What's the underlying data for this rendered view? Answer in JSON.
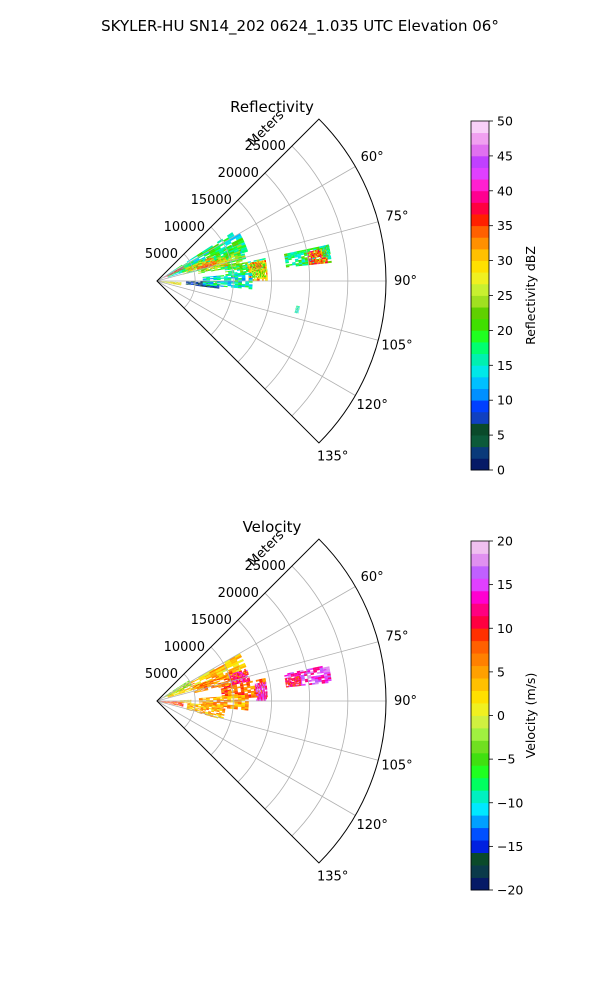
{
  "figure": {
    "title": "SKYLER-HU  SN14_202  0624_1.035 UTC Elevation 06°"
  },
  "chart_data": [
    {
      "type": "heatmap",
      "projection": "polar-sector",
      "title": "Reflectivity",
      "radial_axis_label": "Meters",
      "radial_range": [
        0,
        30000
      ],
      "radial_ticks": [
        5000,
        10000,
        15000,
        20000,
        25000
      ],
      "radial_tick_labels": [
        "5000",
        "10000",
        "15000",
        "20000",
        "25000"
      ],
      "angle_range_deg": [
        45,
        135
      ],
      "angle_ticks": [
        "60°",
        "75°",
        "90°",
        "105°",
        "120°",
        "135°"
      ],
      "grid": true,
      "colorbar": {
        "label": "Reflectivity dBZ",
        "range": [
          0,
          50
        ],
        "ticks": [
          "0",
          "5",
          "10",
          "15",
          "20",
          "25",
          "30",
          "35",
          "40",
          "45",
          "50"
        ],
        "colors": [
          "#061a66",
          "#0a3a7a",
          "#0c5a3a",
          "#0a4a2a",
          "#1040c0",
          "#0040ff",
          "#0090ff",
          "#00c0ff",
          "#00e8e8",
          "#00f0b0",
          "#00ff70",
          "#20ff20",
          "#40e000",
          "#60d000",
          "#a0e020",
          "#c8f030",
          "#f0f020",
          "#ffe000",
          "#ffc000",
          "#ff9000",
          "#ff6000",
          "#ff2000",
          "#ff0040",
          "#ff0090",
          "#ff20d0",
          "#e040ff",
          "#c040ff",
          "#e070f0",
          "#f0a0f0",
          "#f8d0f8"
        ]
      },
      "regions": [
        {
          "az": [
            57,
            72
          ],
          "r": [
            1500,
            12500
          ],
          "value": 17
        },
        {
          "az": [
            64,
            76
          ],
          "r": [
            3500,
            12000
          ],
          "value": 20
        },
        {
          "az": [
            70,
            80
          ],
          "r": [
            5500,
            11500
          ],
          "value": 22
        },
        {
          "az": [
            78,
            86
          ],
          "r": [
            9000,
            14500
          ],
          "value": 19
        },
        {
          "az": [
            79,
            90
          ],
          "r": [
            12000,
            14500
          ],
          "value": 31
        },
        {
          "az": [
            66,
            74
          ],
          "r": [
            4000,
            8000
          ],
          "value": 30
        },
        {
          "az": [
            71,
            78
          ],
          "r": [
            6500,
            9500
          ],
          "value": 29
        },
        {
          "az": [
            80,
            88
          ],
          "r": [
            12500,
            14300
          ],
          "value": 24
        },
        {
          "az": [
            78,
            84
          ],
          "r": [
            17000,
            23000
          ],
          "value": 18
        },
        {
          "az": [
            79,
            84
          ],
          "r": [
            20000,
            22500
          ],
          "value": 34
        },
        {
          "az": [
            80,
            83
          ],
          "r": [
            13000,
            13800
          ],
          "value": 34
        },
        {
          "az": [
            71,
            75
          ],
          "r": [
            5500,
            8000
          ],
          "value": 35
        },
        {
          "az": [
            90,
            97
          ],
          "r": [
            3800,
            8200
          ],
          "value": 5
        },
        {
          "az": [
            85,
            95
          ],
          "r": [
            6000,
            12500
          ],
          "value": 15
        },
        {
          "az": [
            60,
            66
          ],
          "r": [
            1000,
            4000
          ],
          "value": 38
        },
        {
          "az": [
            93,
            101
          ],
          "r": [
            200,
            3200
          ],
          "value": 27
        },
        {
          "az": [
            78,
            82
          ],
          "r": [
            22000,
            23000
          ],
          "value": 18
        },
        {
          "az": [
            100,
            103
          ],
          "r": [
            18500,
            19000
          ],
          "value": 16
        }
      ]
    },
    {
      "type": "heatmap",
      "projection": "polar-sector",
      "title": "Velocity",
      "radial_axis_label": "Meters",
      "radial_range": [
        0,
        30000
      ],
      "radial_ticks": [
        5000,
        10000,
        15000,
        20000,
        25000
      ],
      "radial_tick_labels": [
        "5000",
        "10000",
        "15000",
        "20000",
        "25000"
      ],
      "angle_range_deg": [
        45,
        135
      ],
      "angle_ticks": [
        "60°",
        "75°",
        "90°",
        "105°",
        "120°",
        "135°"
      ],
      "grid": true,
      "colorbar": {
        "label": "Velocity (m/s)",
        "range": [
          -20,
          20
        ],
        "ticks": [
          "−20",
          "−15",
          "−10",
          "−5",
          "0",
          "5",
          "10",
          "15",
          "20"
        ],
        "colors": [
          "#061a66",
          "#0a3a4a",
          "#0a4a2a",
          "#0020e0",
          "#0050ff",
          "#00a0ff",
          "#00e8ff",
          "#00f0c0",
          "#00ff60",
          "#20ff20",
          "#40e010",
          "#70e020",
          "#a0f040",
          "#d0f040",
          "#f0f020",
          "#ffe000",
          "#ffc000",
          "#ffa000",
          "#ff8000",
          "#ff6000",
          "#ff3000",
          "#ff0040",
          "#ff0080",
          "#ff00d0",
          "#e040ff",
          "#c060ff",
          "#e090f0",
          "#f0c0f0"
        ]
      },
      "regions": [
        {
          "az": [
            60,
            73
          ],
          "r": [
            1500,
            12500
          ],
          "value": 3
        },
        {
          "az": [
            57,
            66
          ],
          "r": [
            1000,
            5000
          ],
          "value": -2
        },
        {
          "az": [
            68,
            78
          ],
          "r": [
            5000,
            11500
          ],
          "value": 6
        },
        {
          "az": [
            78,
            88
          ],
          "r": [
            8500,
            14500
          ],
          "value": 7
        },
        {
          "az": [
            80,
            90
          ],
          "r": [
            13000,
            14500
          ],
          "value": 14
        },
        {
          "az": [
            70,
            78
          ],
          "r": [
            10000,
            12500
          ],
          "value": 12
        },
        {
          "az": [
            78,
            84
          ],
          "r": [
            17000,
            23000
          ],
          "value": 15
        },
        {
          "az": [
            80,
            84
          ],
          "r": [
            17000,
            19000
          ],
          "value": 10
        },
        {
          "az": [
            86,
            96
          ],
          "r": [
            5500,
            12000
          ],
          "value": 5
        },
        {
          "az": [
            92,
            102
          ],
          "r": [
            200,
            3500
          ],
          "value": 8
        },
        {
          "az": [
            94,
            106
          ],
          "r": [
            4000,
            9000
          ],
          "value": 4
        },
        {
          "az": [
            88,
            94
          ],
          "r": [
            3000,
            4500
          ],
          "value": 2
        }
      ]
    }
  ]
}
